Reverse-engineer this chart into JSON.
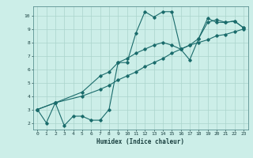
{
  "xlabel": "Humidex (Indice chaleur)",
  "xlim": [
    -0.5,
    23.5
  ],
  "ylim": [
    1.5,
    10.7
  ],
  "xticks": [
    0,
    1,
    2,
    3,
    4,
    5,
    6,
    7,
    8,
    9,
    10,
    11,
    12,
    13,
    14,
    15,
    16,
    17,
    18,
    19,
    20,
    21,
    22,
    23
  ],
  "yticks": [
    2,
    3,
    4,
    5,
    6,
    7,
    8,
    9,
    10
  ],
  "bg_color": "#cceee8",
  "grid_color": "#aad4cc",
  "line_color": "#1a6b6b",
  "line1_x": [
    0,
    1,
    2,
    3,
    4,
    5,
    6,
    7,
    8,
    9,
    10,
    11,
    12,
    13,
    14,
    15,
    16,
    17,
    18,
    19,
    20,
    21,
    22,
    23
  ],
  "line1_y": [
    3.0,
    2.0,
    3.5,
    1.8,
    2.5,
    2.5,
    2.2,
    2.2,
    3.0,
    6.5,
    6.5,
    8.7,
    10.3,
    9.9,
    10.3,
    10.3,
    7.5,
    6.7,
    8.3,
    9.8,
    9.5,
    9.5,
    9.6,
    9.1
  ],
  "line2_x": [
    0,
    2,
    5,
    7,
    8,
    9,
    10,
    11,
    12,
    13,
    14,
    15,
    16,
    17,
    18,
    19,
    20,
    21,
    22,
    23
  ],
  "line2_y": [
    3.0,
    3.5,
    4.3,
    5.5,
    5.8,
    6.5,
    6.8,
    7.2,
    7.5,
    7.8,
    8.0,
    7.8,
    7.5,
    7.8,
    8.3,
    9.5,
    9.7,
    9.5,
    9.6,
    9.1
  ],
  "line3_x": [
    0,
    2,
    5,
    7,
    8,
    9,
    10,
    11,
    12,
    13,
    14,
    15,
    16,
    17,
    18,
    19,
    20,
    21,
    22,
    23
  ],
  "line3_y": [
    3.0,
    3.5,
    4.0,
    4.5,
    4.8,
    5.2,
    5.5,
    5.8,
    6.2,
    6.5,
    6.8,
    7.2,
    7.5,
    7.8,
    8.0,
    8.2,
    8.5,
    8.6,
    8.8,
    9.0
  ]
}
